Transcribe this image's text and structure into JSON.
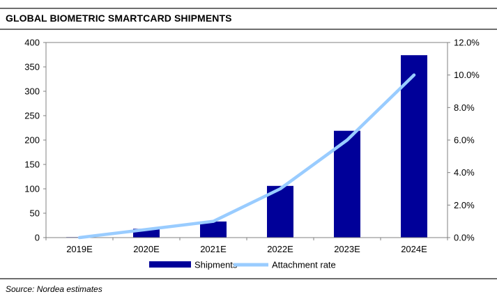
{
  "header": {
    "title": "GLOBAL BIOMETRIC SMARTCARD SHIPMENTS"
  },
  "footer": {
    "source": "Source: Nordea estimates"
  },
  "chart_data": {
    "type": "bar",
    "title": "GLOBAL BIOMETRIC SMARTCARD SHIPMENTS",
    "categories": [
      "2019E",
      "2020E",
      "2021E",
      "2022E",
      "2023E",
      "2024E"
    ],
    "series": [
      {
        "name": "Shipments",
        "type": "bar",
        "axis": "left",
        "color": "#000099",
        "values": [
          1,
          18,
          33,
          106,
          219,
          374
        ]
      },
      {
        "name": "Attachment rate",
        "type": "line",
        "axis": "right",
        "color": "#99ccff",
        "values": [
          0.0,
          0.5,
          1.0,
          3.0,
          6.0,
          10.0
        ]
      }
    ],
    "y_left": {
      "min": 0,
      "max": 400,
      "step": 50,
      "ticks": [
        "0",
        "50",
        "100",
        "150",
        "200",
        "250",
        "300",
        "350",
        "400"
      ]
    },
    "y_right": {
      "min": 0,
      "max": 12,
      "step": 2,
      "ticks": [
        "0.0%",
        "2.0%",
        "4.0%",
        "6.0%",
        "8.0%",
        "10.0%",
        "12.0%"
      ]
    },
    "grid": false,
    "legend_position": "bottom"
  }
}
